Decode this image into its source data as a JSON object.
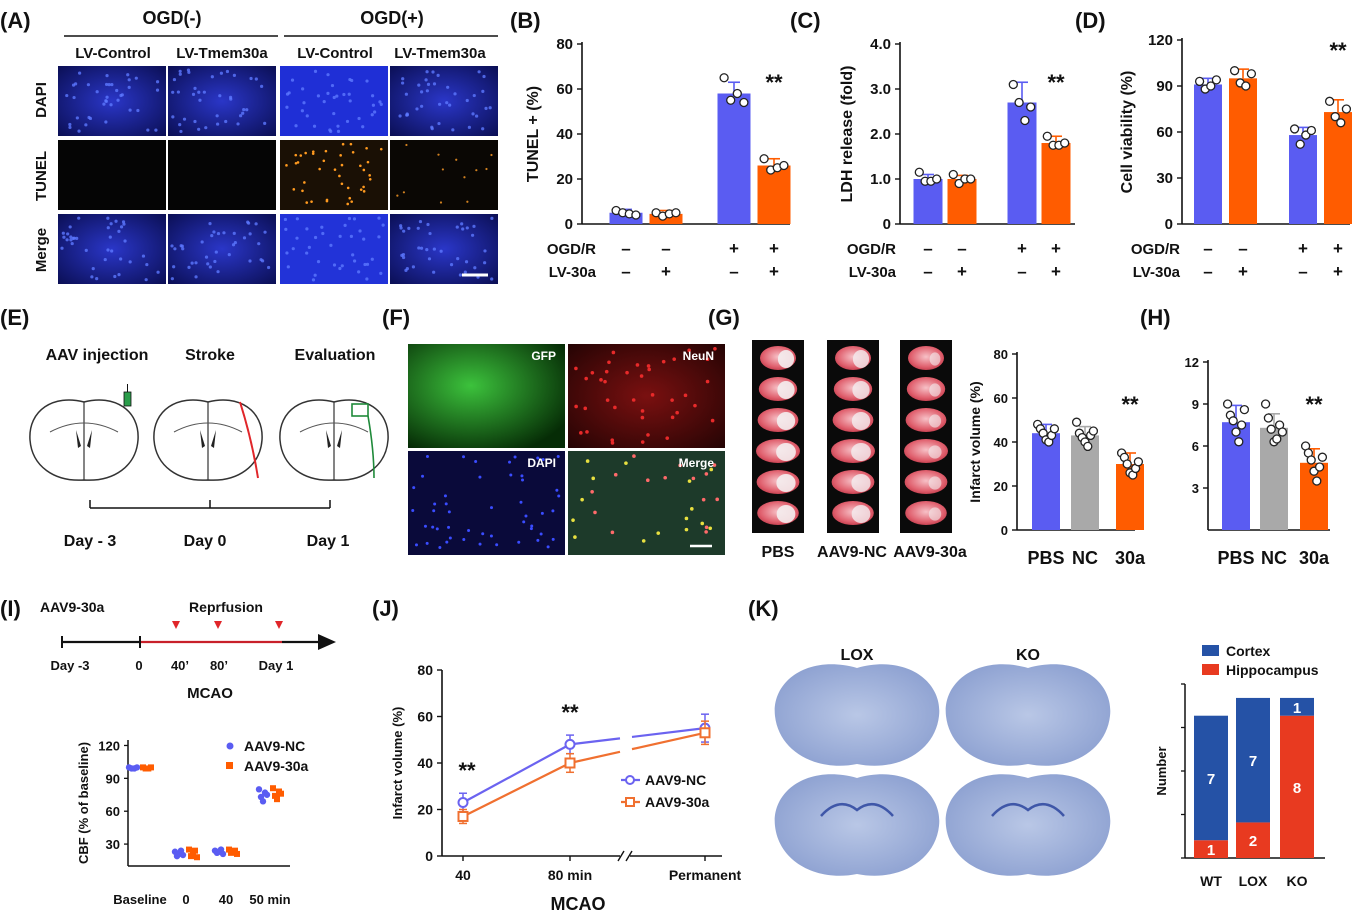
{
  "colors": {
    "blue": "#5a5cf2",
    "orange": "#ff5c00",
    "gray": "#a9a9a9",
    "cortex": "#2552a6",
    "hippo": "#e83a20",
    "nc_line": "#6b63f0",
    "a30_line": "#f07030"
  },
  "panels": {
    "A": {
      "label": "(A)",
      "groups": [
        "OGD(-)",
        "OGD(+)"
      ],
      "columns": [
        "LV-Control",
        "LV-Tmem30a",
        "LV-Control",
        "LV-Tmem30a"
      ],
      "rows": [
        "DAPI",
        "TUNEL",
        "Merge"
      ]
    },
    "E": {
      "label": "(E)",
      "steps": [
        "AAV injection",
        "Stroke",
        "Evaluation"
      ],
      "days": [
        "Day - 3",
        "Day 0",
        "Day 1"
      ]
    },
    "F": {
      "label": "(F)",
      "tiles": [
        "GFP",
        "NeuN",
        "DAPI",
        "Merge"
      ]
    },
    "G": {
      "label": "(G)",
      "slices": [
        "PBS",
        "AAV9-NC",
        "AAV9-30a"
      ]
    },
    "H": {
      "label": "(H)"
    },
    "I": {
      "label": "(I)",
      "treatment": "AAV9-30a",
      "reperfusion": "Reprfusion",
      "ticks": [
        "Day -3",
        "0",
        "40’",
        "80’",
        "Day 1"
      ],
      "axis": "MCAO"
    },
    "J": {
      "label": "(J)"
    },
    "K": {
      "label": "(K)",
      "images": [
        "LOX",
        "KO"
      ]
    }
  },
  "chart_data": [
    {
      "id": "B",
      "label": "(B)",
      "type": "bar",
      "ylabel": "TUNEL + (%)",
      "ylim": [
        0,
        80
      ],
      "yticks": [
        0,
        20,
        40,
        60,
        80
      ],
      "rows": [
        {
          "name": "OGD/R",
          "values": [
            "–",
            "–",
            "+",
            "+"
          ]
        },
        {
          "name": "LV-30a",
          "values": [
            "–",
            "+",
            "–",
            "+"
          ]
        }
      ],
      "values": [
        5,
        4.5,
        58,
        26
      ],
      "errors": [
        1.5,
        1.5,
        5,
        3
      ],
      "colors": [
        "blue",
        "orange",
        "blue",
        "orange"
      ],
      "points": [
        [
          6,
          5,
          4.5,
          4
        ],
        [
          5,
          3.5,
          4.5,
          5
        ],
        [
          65,
          55,
          58,
          54
        ],
        [
          29,
          24,
          25,
          26
        ]
      ],
      "annotation": "**"
    },
    {
      "id": "C",
      "label": "(C)",
      "type": "bar",
      "ylabel": "LDH release (fold)",
      "ylim": [
        0,
        4
      ],
      "yticks": [
        "0",
        "1.0",
        "2.0",
        "3.0",
        "4.0"
      ],
      "rows": [
        {
          "name": "OGD/R",
          "values": [
            "–",
            "–",
            "+",
            "+"
          ]
        },
        {
          "name": "LV-30a",
          "values": [
            "–",
            "+",
            "–",
            "+"
          ]
        }
      ],
      "values": [
        1.0,
        1.0,
        2.7,
        1.8
      ],
      "errors": [
        0.1,
        0.08,
        0.45,
        0.15
      ],
      "colors": [
        "blue",
        "orange",
        "blue",
        "orange"
      ],
      "points": [
        [
          1.15,
          0.95,
          0.95,
          1.0
        ],
        [
          1.1,
          0.9,
          1.0,
          1.0
        ],
        [
          3.1,
          2.7,
          2.3,
          2.6
        ],
        [
          1.95,
          1.75,
          1.75,
          1.8
        ]
      ],
      "annotation": "**"
    },
    {
      "id": "D",
      "label": "(D)",
      "type": "bar",
      "ylabel": "Cell viability (%)",
      "ylim": [
        0,
        120
      ],
      "yticks": [
        0,
        30,
        60,
        90,
        120
      ],
      "rows": [
        {
          "name": "OGD/R",
          "values": [
            "–",
            "–",
            "+",
            "+"
          ]
        },
        {
          "name": "LV-30a",
          "values": [
            "–",
            "+",
            "–",
            "+"
          ]
        }
      ],
      "values": [
        91,
        95,
        58,
        73
      ],
      "errors": [
        4,
        6,
        5,
        8
      ],
      "colors": [
        "blue",
        "orange",
        "blue",
        "orange"
      ],
      "points": [
        [
          93,
          88,
          90,
          94
        ],
        [
          100,
          92,
          90,
          98
        ],
        [
          62,
          52,
          58,
          61
        ],
        [
          80,
          70,
          66,
          75
        ]
      ],
      "annotation": "**"
    },
    {
      "id": "G",
      "type": "bar",
      "ylabel": "Infarct volume (%)",
      "ylim": [
        0,
        80
      ],
      "yticks": [
        0,
        20,
        40,
        60,
        80
      ],
      "categories": [
        "PBS",
        "NC",
        "30a"
      ],
      "values": [
        44,
        43,
        30
      ],
      "errors": [
        4,
        4,
        5
      ],
      "colors": [
        "blue",
        "gray",
        "orange"
      ],
      "points": [
        [
          48,
          46,
          44,
          41,
          40,
          43,
          46
        ],
        [
          49,
          44,
          42,
          40,
          38,
          43,
          45
        ],
        [
          35,
          33,
          30,
          26,
          25,
          28,
          31
        ]
      ],
      "annotation": "**"
    },
    {
      "id": "H",
      "type": "bar",
      "ylabel": "",
      "ylim": [
        0,
        12
      ],
      "yticks": [
        3,
        6,
        9,
        12
      ],
      "categories": [
        "PBS",
        "NC",
        "30a"
      ],
      "values": [
        7.7,
        7.3,
        4.8
      ],
      "errors": [
        1.2,
        1.0,
        1.0
      ],
      "colors": [
        "blue",
        "gray",
        "orange"
      ],
      "points": [
        [
          9.0,
          8.2,
          7.8,
          7.0,
          6.3,
          7.5,
          8.6
        ],
        [
          9.0,
          8.0,
          7.2,
          6.3,
          6.5,
          7.5,
          7.0
        ],
        [
          6.0,
          5.5,
          5.0,
          4.2,
          3.5,
          4.5,
          5.2
        ]
      ],
      "annotation": "**"
    },
    {
      "id": "I",
      "type": "scatter",
      "ylabel": "CBF (% of baseline)",
      "ylim": [
        10,
        125
      ],
      "yticks": [
        30,
        60,
        90,
        120
      ],
      "categories": [
        "Baseline",
        "0",
        "40",
        "50 min"
      ],
      "series": [
        {
          "name": "AAV9-NC",
          "color": "blue",
          "marker": "circle",
          "points": [
            [
              100,
              99,
              99,
              100
            ],
            [
              23,
              19,
              21,
              24,
              20
            ],
            [
              24,
              22,
              23,
              25,
              21
            ],
            [
              80,
              73,
              69,
              77,
              75
            ]
          ]
        },
        {
          "name": "AAV9-30a",
          "color": "orange",
          "marker": "square",
          "points": [
            [
              100,
              99,
              99,
              100
            ],
            [
              25,
              19,
              22,
              24,
              18
            ],
            [
              25,
              22,
              23,
              24,
              21
            ],
            [
              81,
              74,
              71,
              78,
              76
            ]
          ]
        }
      ]
    },
    {
      "id": "J",
      "label": "(J)",
      "type": "line",
      "ylabel": "Infarct volume (%)",
      "xlabel": "MCAO",
      "ylim": [
        0,
        80
      ],
      "yticks": [
        0,
        20,
        40,
        60,
        80
      ],
      "categories": [
        "40",
        "80 min",
        "Permanent"
      ],
      "series": [
        {
          "name": "AAV9-NC",
          "values": [
            23,
            48,
            55
          ],
          "errors": [
            4,
            4,
            6
          ]
        },
        {
          "name": "AAV9-30a",
          "values": [
            17,
            40,
            53
          ],
          "errors": [
            3,
            4,
            5
          ]
        }
      ],
      "annotations": [
        "**",
        "**"
      ]
    },
    {
      "id": "K",
      "type": "bar",
      "stacked": true,
      "ylabel": "Number",
      "categories": [
        "WT",
        "LOX",
        "KO"
      ],
      "series": [
        {
          "name": "Cortex",
          "values": [
            7,
            7,
            1
          ]
        },
        {
          "name": "Hippocampus",
          "values": [
            1,
            2,
            8
          ]
        }
      ]
    }
  ]
}
